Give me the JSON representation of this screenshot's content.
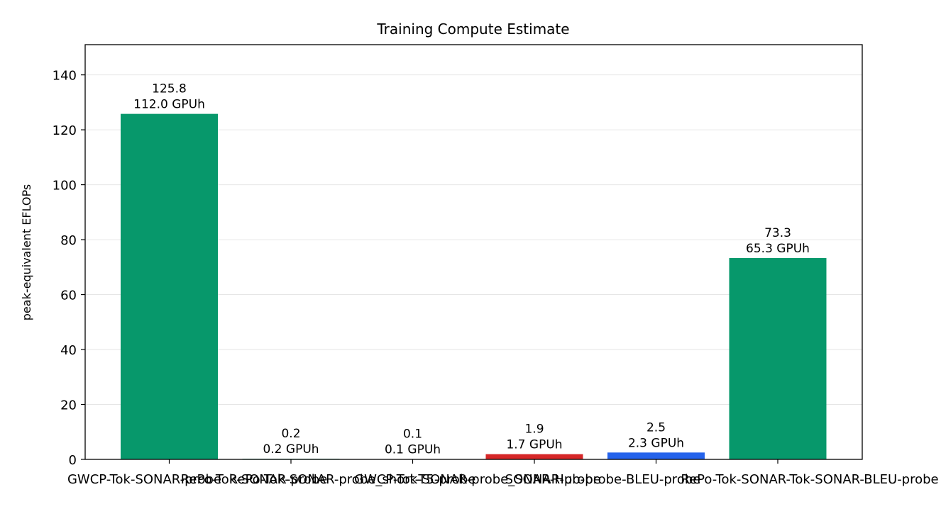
{
  "chart_data": {
    "type": "bar",
    "title": "Training Compute Estimate",
    "xlabel": "",
    "ylabel": "peak-equivalent EFLOPs",
    "ylim": [
      0,
      151
    ],
    "yticks": [
      0,
      20,
      40,
      60,
      80,
      100,
      120,
      140
    ],
    "grid": "y",
    "categories": [
      "GWCP-Tok-SONAR-probe",
      "RePo-Tok-SONAR-probe",
      "RePo-Tok-SONAR-probe_short-T5-probe",
      "GWCP-Tok-SONAR-probe_SONAR-probe",
      "SONAR-Hub-probe-BLEU-probe",
      "RePo-Tok-SONAR-Tok-SONAR-BLEU-probe"
    ],
    "values": [
      125.8,
      0.2,
      0.1,
      1.9,
      2.5,
      73.3
    ],
    "value_labels": [
      "125.8",
      "0.2",
      "0.1",
      "1.9",
      "2.5",
      "73.3"
    ],
    "gpuh_labels": [
      "112.0 GPUh",
      "0.2 GPUh",
      "0.1 GPUh",
      "1.7 GPUh",
      "2.3 GPUh",
      "65.3 GPUh"
    ],
    "colors": [
      "#07986b",
      "#07986b",
      "#07986b",
      "#d62728",
      "#2563eb",
      "#07986b"
    ]
  }
}
